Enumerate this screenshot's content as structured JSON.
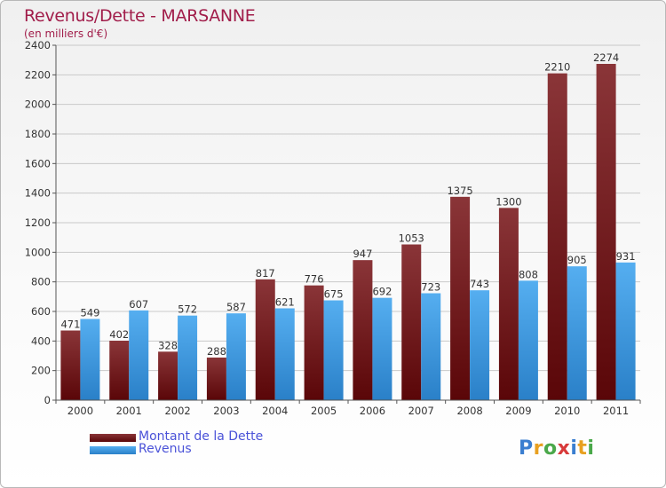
{
  "header": {
    "title": "Revenus/Dette - MARSANNE",
    "subtitle": "(en milliers d'€)"
  },
  "legend": {
    "items": [
      {
        "label": "Montant de la Dette",
        "color": "#6b1010"
      },
      {
        "label": "Revenus",
        "color": "#3d9be0"
      }
    ]
  },
  "logo": {
    "text": "Proxiti"
  },
  "colors": {
    "dette": "#6b1010",
    "revenus": "#3d9be0",
    "title": "#a11d4a",
    "legend_text": "#4a52d8"
  },
  "chart_data": {
    "type": "bar",
    "categories": [
      "2000",
      "2001",
      "2002",
      "2003",
      "2004",
      "2005",
      "2006",
      "2007",
      "2008",
      "2009",
      "2010",
      "2011"
    ],
    "series": [
      {
        "name": "Montant de la Dette",
        "values": [
          471,
          402,
          328,
          288,
          817,
          776,
          947,
          1053,
          1375,
          1300,
          2210,
          2274
        ]
      },
      {
        "name": "Revenus",
        "values": [
          549,
          607,
          572,
          587,
          621,
          675,
          692,
          723,
          743,
          808,
          905,
          931
        ]
      }
    ],
    "ylim": [
      0,
      2400
    ],
    "yticks": [
      0,
      200,
      400,
      600,
      800,
      1000,
      1200,
      1400,
      1600,
      1800,
      2000,
      2200,
      2400
    ],
    "grid": true,
    "legend_position": "bottom-left"
  }
}
